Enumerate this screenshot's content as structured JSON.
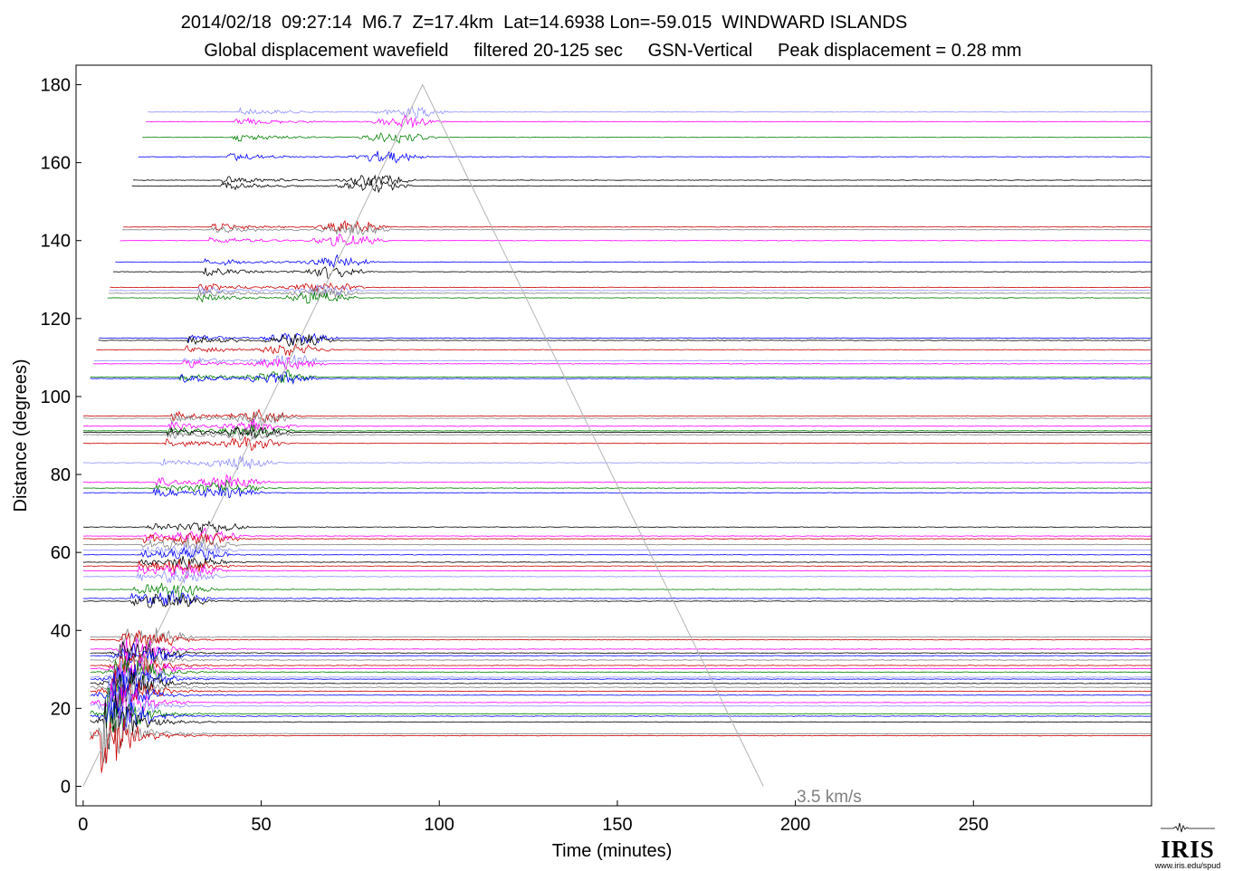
{
  "title_line1": "2014/02/18  09:27:14  M6.7  Z=17.4km  Lat=14.6938 Lon=-59.015  WINDWARD ISLANDS",
  "title_line2": "Global displacement wavefield     filtered 20-125 sec     GSN-Vertical     Peak displacement = 0.28 mm",
  "logo": {
    "word": "IRIS",
    "url": "www.iris.edu/spud"
  },
  "chart_data": {
    "type": "line",
    "title": "2014/02/18  09:27:14  M6.7  Z=17.4km  Lat=14.6938 Lon=-59.015  WINDWARD ISLANDS",
    "subtitle": "Global displacement wavefield     filtered 20-125 sec     GSN-Vertical     Peak displacement = 0.28 mm",
    "xlabel": "Time (minutes)",
    "ylabel": "Distance (degrees)",
    "xlim": [
      -2,
      300
    ],
    "ylim": [
      -5,
      185
    ],
    "x_ticks": [
      0,
      50,
      100,
      150,
      200,
      250
    ],
    "y_ticks": [
      0,
      20,
      40,
      60,
      80,
      100,
      120,
      140,
      160,
      180
    ],
    "grid": false,
    "reference_line": {
      "label": "3.5 km/s",
      "x": [
        0,
        95.3,
        191
      ],
      "y": [
        0,
        180,
        0
      ],
      "color": "#b4b4b4"
    },
    "trace_colors": [
      "#000000",
      "#0000ff",
      "#ff00ff",
      "#008000",
      "#cc0000",
      "#808080",
      "#8f8fff"
    ],
    "traces": [
      {
        "d": 173.0,
        "c": 6,
        "t0": 0
      },
      {
        "d": 170.5,
        "c": 2,
        "t0": 0
      },
      {
        "d": 166.5,
        "c": 3,
        "t0": 0
      },
      {
        "d": 161.5,
        "c": 1,
        "t0": 0
      },
      {
        "d": 155.5,
        "c": 0,
        "t0": 0
      },
      {
        "d": 154.0,
        "c": 0,
        "t0": 0
      },
      {
        "d": 143.5,
        "c": 4,
        "t0": 0
      },
      {
        "d": 142.8,
        "c": 5,
        "t0": 0
      },
      {
        "d": 140.0,
        "c": 2,
        "t0": 0
      },
      {
        "d": 134.5,
        "c": 1,
        "t0": 0
      },
      {
        "d": 132.0,
        "c": 0,
        "t0": 0
      },
      {
        "d": 128.0,
        "c": 4,
        "t0": 0
      },
      {
        "d": 127.2,
        "c": 6,
        "t0": 0
      },
      {
        "d": 126.5,
        "c": 5,
        "t0": 0
      },
      {
        "d": 125.3,
        "c": 3,
        "t0": 0
      },
      {
        "d": 115.0,
        "c": 1,
        "t0": 0
      },
      {
        "d": 114.4,
        "c": 0,
        "t0": 0
      },
      {
        "d": 112.0,
        "c": 4,
        "t0": 0
      },
      {
        "d": 109.2,
        "c": 6,
        "t0": 0
      },
      {
        "d": 108.4,
        "c": 2,
        "t0": 0
      },
      {
        "d": 105.0,
        "c": 3,
        "t0": 0
      },
      {
        "d": 104.6,
        "c": 1,
        "t0": 0
      },
      {
        "d": 95.0,
        "c": 4,
        "t0": 0
      },
      {
        "d": 94.4,
        "c": 5,
        "t0": 0
      },
      {
        "d": 92.4,
        "c": 2,
        "t0": 0
      },
      {
        "d": 91.2,
        "c": 3,
        "t0": 0
      },
      {
        "d": 90.8,
        "c": 0,
        "t0": 0
      },
      {
        "d": 90.2,
        "c": 5,
        "t0": 0
      },
      {
        "d": 88.0,
        "c": 4,
        "t0": 0
      },
      {
        "d": 83.0,
        "c": 6,
        "t0": 0
      },
      {
        "d": 78.0,
        "c": 2,
        "t0": 0
      },
      {
        "d": 76.5,
        "c": 3,
        "t0": 0
      },
      {
        "d": 75.3,
        "c": 1,
        "t0": 0
      },
      {
        "d": 66.5,
        "c": 0,
        "t0": 0
      },
      {
        "d": 64.2,
        "c": 2,
        "t0": 0
      },
      {
        "d": 63.5,
        "c": 4,
        "t0": 0
      },
      {
        "d": 62.0,
        "c": 5,
        "t0": 0
      },
      {
        "d": 60.6,
        "c": 6,
        "t0": 0
      },
      {
        "d": 59.4,
        "c": 1,
        "t0": 0
      },
      {
        "d": 57.5,
        "c": 0,
        "t0": 0
      },
      {
        "d": 56.5,
        "c": 4,
        "t0": 0
      },
      {
        "d": 55.3,
        "c": 2,
        "t0": 0
      },
      {
        "d": 53.8,
        "c": 6,
        "t0": 0
      },
      {
        "d": 50.5,
        "c": 3,
        "t0": 0
      },
      {
        "d": 48.2,
        "c": 1,
        "t0": 0
      },
      {
        "d": 47.5,
        "c": 0,
        "t0": 0
      },
      {
        "d": 38.3,
        "c": 5,
        "t0": 0
      },
      {
        "d": 37.6,
        "c": 4,
        "t0": 0
      },
      {
        "d": 35.2,
        "c": 2,
        "t0": 0
      },
      {
        "d": 34.2,
        "c": 0,
        "t0": 0
      },
      {
        "d": 33.5,
        "c": 1,
        "t0": 0
      },
      {
        "d": 32.4,
        "c": 5,
        "t0": 0
      },
      {
        "d": 31.0,
        "c": 4,
        "t0": 0
      },
      {
        "d": 30.2,
        "c": 2,
        "t0": 0
      },
      {
        "d": 29.3,
        "c": 3,
        "t0": 0
      },
      {
        "d": 28.0,
        "c": 6,
        "t0": 0
      },
      {
        "d": 27.5,
        "c": 1,
        "t0": 0
      },
      {
        "d": 26.4,
        "c": 0,
        "t0": 0
      },
      {
        "d": 25.4,
        "c": 5,
        "t0": 0
      },
      {
        "d": 24.4,
        "c": 4,
        "t0": 0
      },
      {
        "d": 23.4,
        "c": 1,
        "t0": 0
      },
      {
        "d": 21.5,
        "c": 2,
        "t0": 0
      },
      {
        "d": 20.6,
        "c": 6,
        "t0": 0
      },
      {
        "d": 18.6,
        "c": 3,
        "t0": 0
      },
      {
        "d": 18.0,
        "c": 1,
        "t0": 0
      },
      {
        "d": 16.5,
        "c": 0,
        "t0": 0
      },
      {
        "d": 13.5,
        "c": 5,
        "t0": 0
      },
      {
        "d": 13.0,
        "c": 4,
        "t0": 0
      }
    ]
  }
}
